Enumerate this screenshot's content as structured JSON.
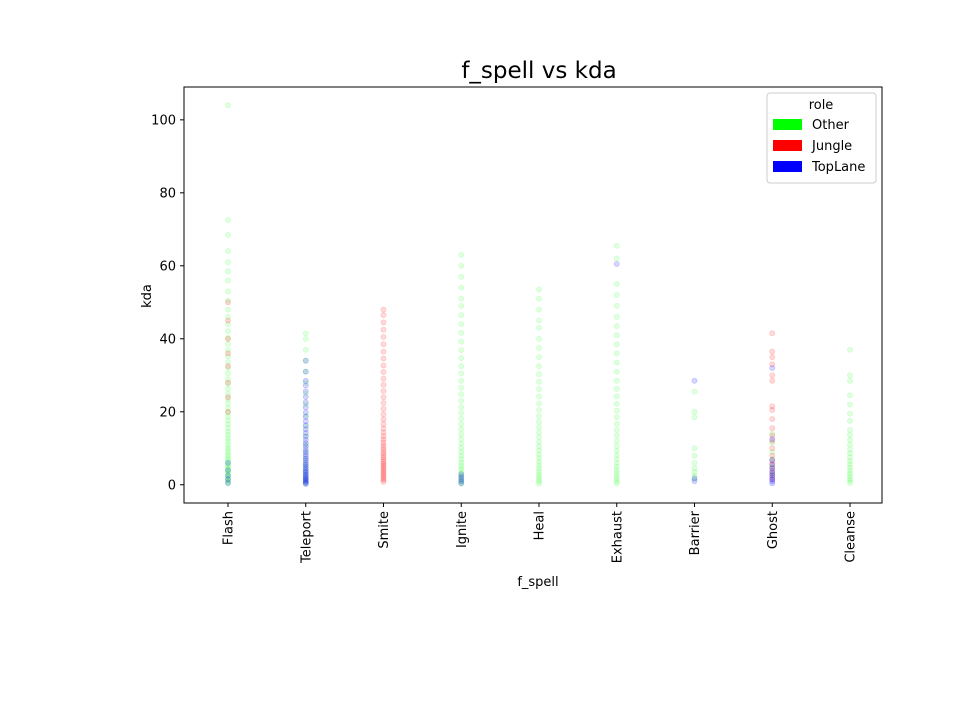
{
  "chart_data": {
    "type": "scatter",
    "title": "f_spell vs kda",
    "xlabel": "f_spell",
    "ylabel": "kda",
    "categories": [
      "Flash",
      "Teleport",
      "Smite",
      "Ignite",
      "Heal",
      "Exhaust",
      "Barrier",
      "Ghost",
      "Cleanse"
    ],
    "y_ticks": [
      0,
      20,
      40,
      60,
      80,
      100
    ],
    "ylim": [
      -5,
      109
    ],
    "grid": false,
    "legend": {
      "title": "role",
      "placement": "top-right",
      "entries": [
        {
          "label": "Other",
          "color": "#00ff00"
        },
        {
          "label": "Jungle",
          "color": "#ff0000"
        },
        {
          "label": "TopLane",
          "color": "#0000ff"
        }
      ]
    },
    "series": [
      {
        "name": "Other",
        "color": "#00ff00",
        "points": {
          "Flash": [
            0.3,
            0.8,
            1.2,
            1.6,
            2.1,
            2.5,
            3.0,
            3.4,
            3.9,
            4.3,
            4.8,
            5.3,
            5.8,
            6.4,
            7.0,
            7.6,
            8.2,
            8.9,
            9.6,
            10.3,
            11.1,
            12.0,
            12.8,
            13.7,
            14.6,
            15.6,
            16.6,
            17.6,
            18.7,
            19.8,
            21.0,
            22.3,
            23.5,
            24.8,
            26.2,
            27.6,
            29.0,
            30.5,
            32.0,
            33.6,
            35.2,
            36.9,
            38.6,
            40.3,
            42.1,
            44.0,
            46.0,
            48.0,
            50.5,
            53.0,
            56.0,
            58.5,
            61.0,
            64.0,
            68.5,
            72.5,
            104.0
          ],
          "Teleport": [
            0.4,
            1.0,
            1.8,
            2.6,
            3.4,
            4.5,
            5.5,
            7.0,
            9.0,
            11.0,
            13.5,
            16.0,
            19.0,
            22.0,
            25.0,
            28.0,
            31.0,
            34.0,
            37.0,
            40.0,
            41.5
          ],
          "Ignite": [
            0.3,
            0.8,
            1.3,
            1.9,
            2.5,
            3.1,
            3.8,
            4.5,
            5.3,
            6.1,
            7.0,
            8.0,
            9.0,
            10.1,
            11.3,
            12.5,
            13.8,
            15.2,
            16.6,
            18.1,
            19.7,
            21.3,
            23.0,
            24.8,
            26.6,
            28.5,
            30.5,
            32.5,
            34.7,
            36.9,
            39.2,
            41.6,
            44.0,
            46.5,
            49.0,
            51.0,
            54.0,
            57.0,
            60.0,
            63.0
          ],
          "Heal": [
            0.3,
            0.9,
            1.5,
            2.2,
            2.9,
            3.7,
            4.5,
            5.4,
            6.3,
            7.3,
            8.3,
            9.4,
            10.5,
            11.7,
            13.0,
            14.3,
            15.7,
            17.2,
            18.8,
            20.5,
            22.3,
            24.2,
            26.2,
            28.2,
            30.3,
            32.5,
            35.0,
            37.5,
            40.0,
            43.0,
            45.0,
            48.0,
            51.0,
            53.5
          ],
          "Exhaust": [
            0.4,
            1.0,
            1.7,
            2.4,
            3.2,
            4.0,
            4.9,
            5.9,
            7.0,
            8.1,
            9.3,
            10.6,
            12.0,
            13.5,
            15.0,
            16.7,
            18.5,
            20.3,
            22.2,
            24.2,
            26.3,
            28.5,
            31.0,
            33.5,
            36.0,
            38.5,
            41.0,
            43.5,
            46.0,
            49.0,
            52.0,
            55.0,
            62.0,
            65.5
          ],
          "Barrier": [
            1.5,
            2.5,
            3.5,
            4.5,
            6.0,
            8.0,
            10.0,
            18.5,
            20.0,
            25.5
          ],
          "Ghost": [
            3.0,
            5.0,
            7.0,
            9.0,
            11.5,
            14.0
          ],
          "Cleanse": [
            0.5,
            1.1,
            1.7,
            2.4,
            3.1,
            3.9,
            4.7,
            5.6,
            6.5,
            7.5,
            8.6,
            9.7,
            11.0,
            12.3,
            13.6,
            15.0,
            17.5,
            19.5,
            22.0,
            24.5,
            28.5,
            30.0,
            37.0
          ]
        }
      },
      {
        "name": "Jungle",
        "color": "#ff0000",
        "points": {
          "Flash": [
            20.0,
            24.0,
            28.0,
            32.5,
            36.0,
            40.0,
            45.0,
            50.0
          ],
          "Smite": [
            0.8,
            1.3,
            1.8,
            2.3,
            2.8,
            3.3,
            3.8,
            4.3,
            4.8,
            5.3,
            5.8,
            6.3,
            6.9,
            7.5,
            8.1,
            8.7,
            9.4,
            10.1,
            10.8,
            11.6,
            12.4,
            13.3,
            14.3,
            15.4,
            16.6,
            17.9,
            19.3,
            20.8,
            22.4,
            24.0,
            25.7,
            27.4,
            29.1,
            30.9,
            32.7,
            34.6,
            36.5,
            38.5,
            40.5,
            42.5,
            44.5,
            46.5,
            48.0
          ],
          "Ghost": [
            1.5,
            2.5,
            3.5,
            4.5,
            5.5,
            6.5,
            8.0,
            10.0,
            12.0,
            13.5,
            15.5,
            18.0,
            20.5,
            21.5,
            28.5,
            30.0,
            33.0,
            35.0,
            36.5,
            41.5
          ]
        }
      },
      {
        "name": "TopLane",
        "color": "#0000ff",
        "points": {
          "Flash": [
            0.5,
            1.5,
            2.5,
            4.0,
            6.0
          ],
          "Teleport": [
            0.2,
            0.5,
            0.8,
            1.1,
            1.4,
            1.7,
            2.0,
            2.4,
            2.8,
            3.2,
            3.6,
            4.0,
            4.5,
            5.0,
            5.5,
            6.0,
            6.6,
            7.2,
            7.8,
            8.4,
            9.1,
            9.8,
            10.6,
            11.4,
            12.3,
            13.2,
            14.2,
            15.2,
            16.3,
            17.4,
            18.6,
            19.8,
            21.2,
            22.6,
            24.1,
            25.6,
            27.2,
            28.5,
            31.0,
            34.0
          ],
          "Ignite": [
            0.4,
            1.0,
            1.6,
            2.2,
            2.9
          ],
          "Exhaust": [
            60.5
          ],
          "Barrier": [
            1.0,
            1.8,
            28.5
          ],
          "Ghost": [
            0.4,
            0.9,
            1.4,
            1.9,
            2.5,
            3.1,
            3.8,
            4.6,
            5.6,
            6.8,
            12.5,
            32.0
          ]
        }
      }
    ]
  }
}
